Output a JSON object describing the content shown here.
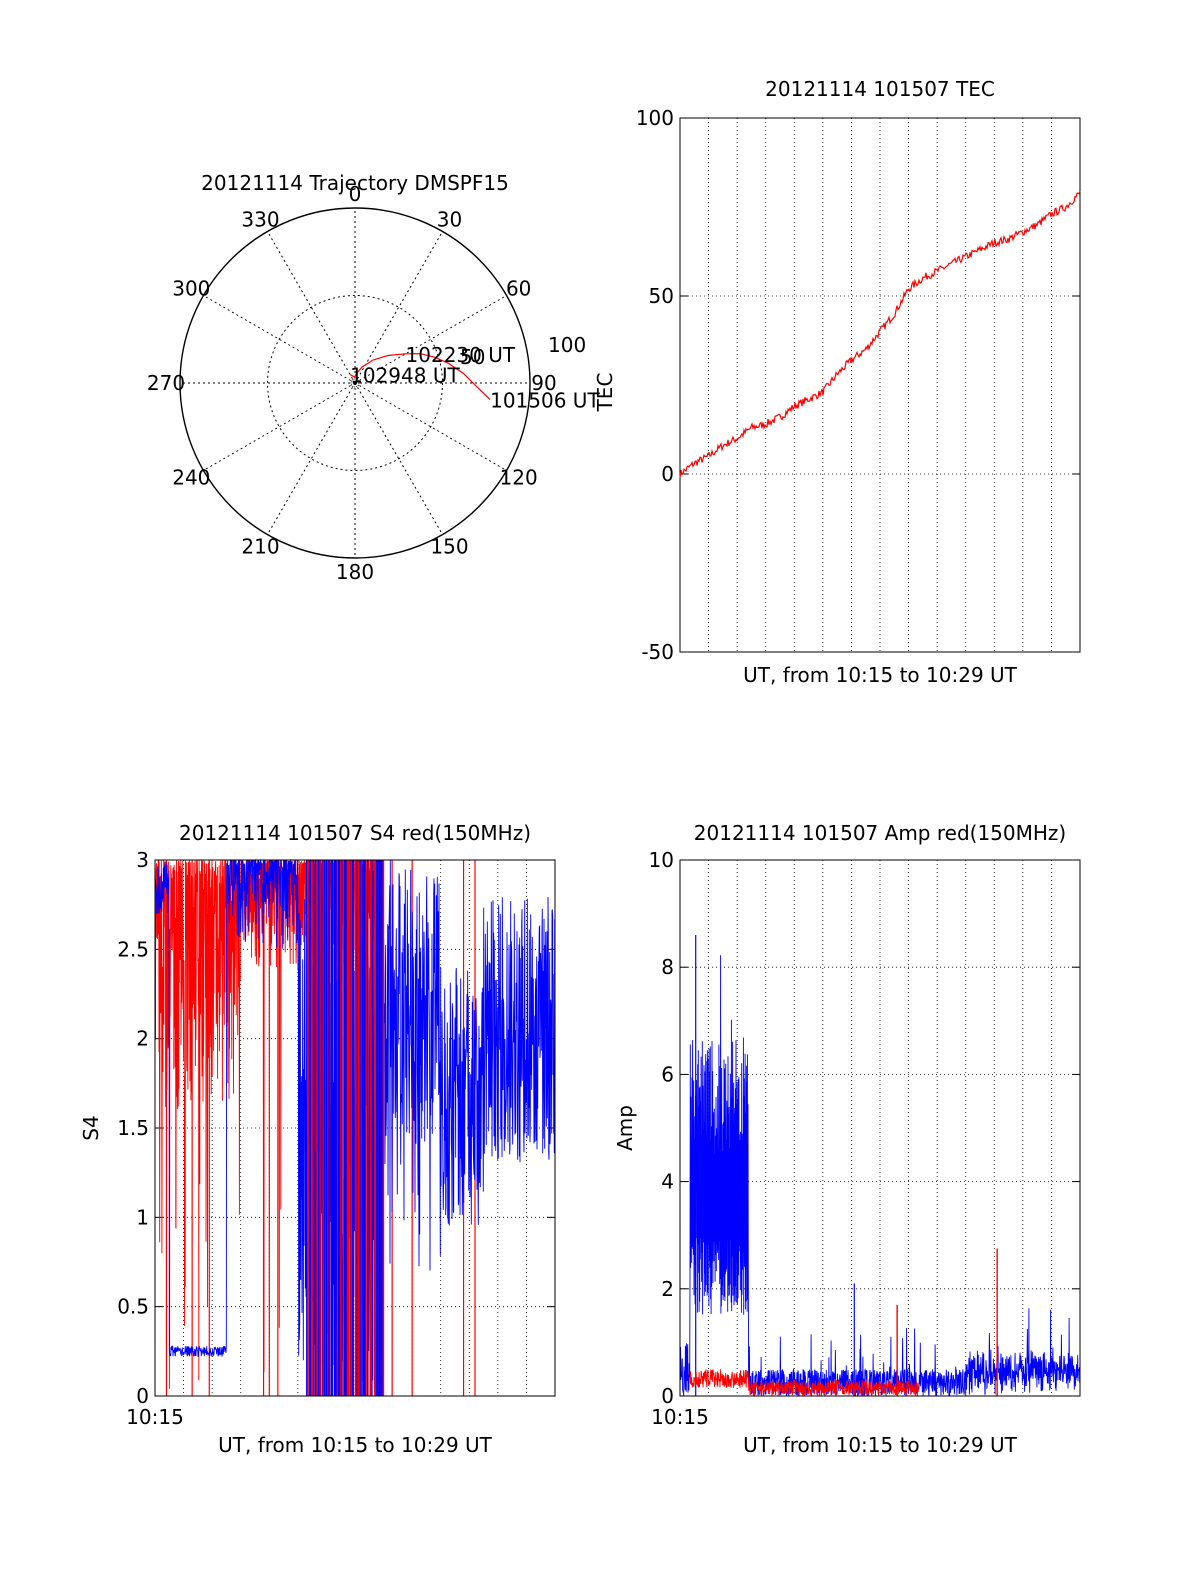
{
  "colors": {
    "red": "#ff0000",
    "blue": "#0000ff",
    "axis": "#000000",
    "grid": "#000000"
  },
  "chart_data": [
    {
      "id": "trajectory",
      "type": "polar",
      "title": "20121114 Trajectory DMSPF15",
      "azimuth_labels": [
        "0",
        "30",
        "60",
        "90",
        "120",
        "150",
        "180",
        "210",
        "240",
        "270",
        "300",
        "330"
      ],
      "radial_labels": [
        "50",
        "100"
      ],
      "radial_ticks": [
        50,
        100
      ],
      "grid": true,
      "points_label_format": "azimuth_deg / elevation_deg",
      "trajectory": {
        "color": "red",
        "points": [
          [
            97,
            20
          ],
          [
            92,
            27
          ],
          [
            85,
            34
          ],
          [
            78,
            41
          ],
          [
            72,
            47
          ],
          [
            66,
            53
          ],
          [
            60,
            60
          ],
          [
            50,
            68
          ],
          [
            38,
            75
          ],
          [
            24,
            81
          ],
          [
            10,
            85
          ],
          [
            -5,
            87
          ],
          [
            -20,
            86
          ],
          [
            -30,
            85
          ]
        ]
      },
      "annotations": [
        {
          "text": "101506 UT",
          "az": 97,
          "el": 20
        },
        {
          "text": "102230 UT",
          "az": 60,
          "el": 60
        },
        {
          "text": "102948 UT",
          "az": -30,
          "el": 85
        }
      ]
    },
    {
      "id": "tec",
      "type": "line",
      "title": "20121114 101507 TEC",
      "xlabel": "UT, from 10:15 to 10:29 UT",
      "ylabel": "TEC",
      "xlim": [
        0,
        14
      ],
      "ylim": [
        -50,
        100
      ],
      "yticks": [
        -50,
        0,
        50,
        100
      ],
      "xgrid": [
        1,
        2,
        3,
        4,
        5,
        6,
        7,
        8,
        9,
        10,
        11,
        12,
        13
      ],
      "grid": true,
      "series": [
        {
          "color": "red",
          "x": [
            0,
            0.5,
            1,
            1.5,
            2,
            2.5,
            3,
            3.5,
            4,
            4.5,
            5,
            5.5,
            6,
            6.5,
            7,
            7.5,
            8,
            8.5,
            9,
            9.5,
            10,
            10.5,
            11,
            11.5,
            12,
            12.5,
            13,
            13.5,
            14
          ],
          "y": [
            0,
            3,
            5,
            8,
            10,
            13,
            14,
            16,
            19,
            21,
            23,
            28,
            32,
            35,
            40,
            45,
            52,
            55,
            57,
            59,
            61,
            63,
            65,
            66,
            68,
            70,
            73,
            75,
            79
          ]
        }
      ]
    },
    {
      "id": "s4",
      "type": "line",
      "title": "20121114 101507 S4 red(150MHz)",
      "xlabel": "UT, from 10:15 to 10:29 UT",
      "ylabel": "S4",
      "x_start_label": "10:15",
      "xlim": [
        0,
        14
      ],
      "ylim": [
        0,
        3
      ],
      "yticks": [
        "0",
        "0.5",
        "1",
        "1.5",
        "2",
        "2.5",
        "3"
      ],
      "ytick_values": [
        0,
        0.5,
        1,
        1.5,
        2,
        2.5,
        3
      ],
      "xgrid": [
        1,
        2,
        3,
        4,
        5,
        6,
        7,
        8,
        9,
        10,
        11,
        12,
        13
      ],
      "grid": true,
      "series": [
        {
          "name": "",
          "color": "red",
          "pattern": "dense_noise",
          "x_range": [
            0,
            7.8
          ],
          "y_range": [
            1.5,
            3
          ]
        },
        {
          "name": "",
          "color": "blue",
          "pattern": "blue_s4",
          "x_range": [
            0,
            14
          ],
          "y_range": [
            0.2,
            3
          ]
        }
      ]
    },
    {
      "id": "amp",
      "type": "line",
      "title": "20121114 101507 Amp red(150MHz)",
      "xlabel": "UT, from 10:15 to 10:29 UT",
      "ylabel": "Amp",
      "x_start_label": "10:15",
      "xlim": [
        0,
        14
      ],
      "ylim": [
        0,
        10
      ],
      "yticks": [
        0,
        2,
        4,
        6,
        8,
        10
      ],
      "xgrid": [
        1,
        2,
        3,
        4,
        5,
        6,
        7,
        8,
        9,
        10,
        11,
        12,
        13
      ],
      "grid": true,
      "series": [
        {
          "color": "blue",
          "pattern": "amp_blue"
        },
        {
          "color": "red",
          "pattern": "amp_red"
        }
      ]
    }
  ]
}
